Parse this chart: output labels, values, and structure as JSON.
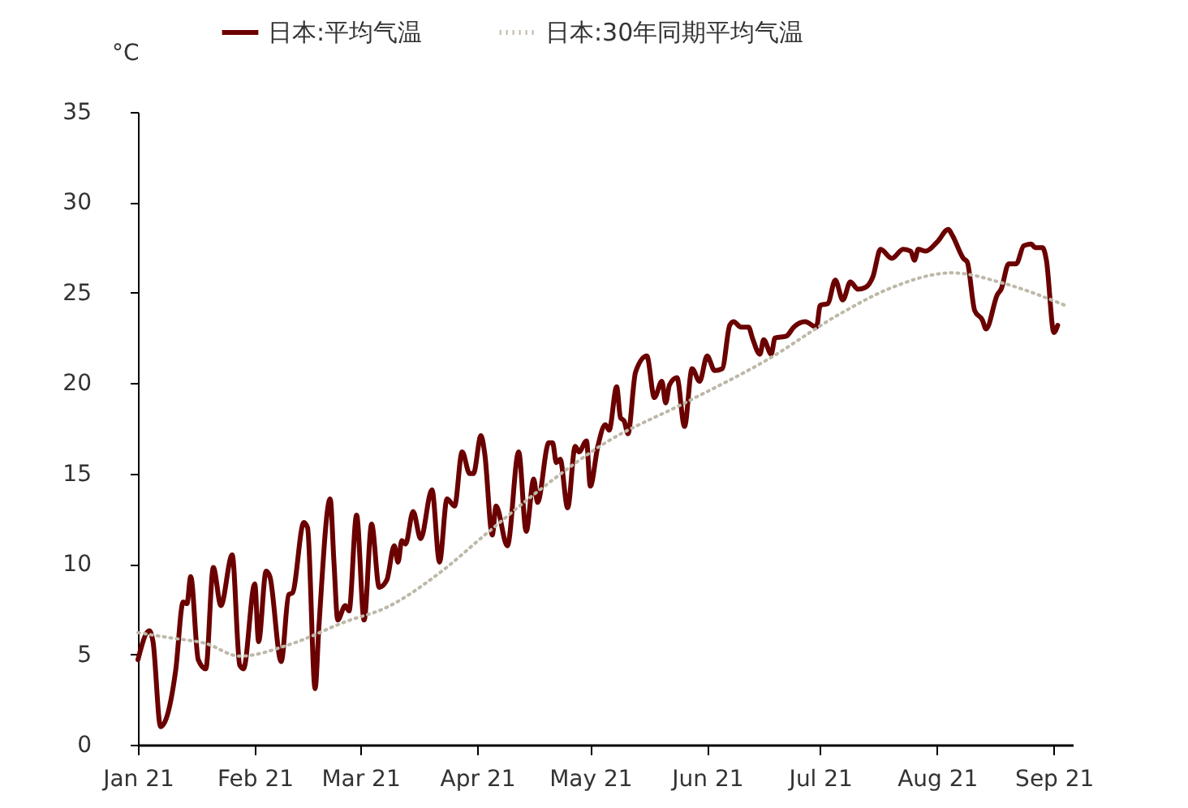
{
  "chart_data": {
    "type": "line",
    "ylabel": "°C",
    "legend": "top",
    "grid": false,
    "marker": "none",
    "xlim": [
      "2021-01-01",
      "2021-09-06"
    ],
    "xticks": [
      {
        "value": "2021-01-01",
        "label": "Jan 21"
      },
      {
        "value": "2021-02-01",
        "label": "Feb 21"
      },
      {
        "value": "2021-03-01",
        "label": "Mar 21"
      },
      {
        "value": "2021-04-01",
        "label": "Apr 21"
      },
      {
        "value": "2021-05-01",
        "label": "May 21"
      },
      {
        "value": "2021-06-01",
        "label": "Jun 21"
      },
      {
        "value": "2021-07-01",
        "label": "Jul 21"
      },
      {
        "value": "2021-08-01",
        "label": "Aug 21"
      },
      {
        "value": "2021-09-01",
        "label": "Sep 21"
      }
    ],
    "ylim": [
      0,
      35
    ],
    "yticks": [
      0,
      5,
      10,
      15,
      20,
      25,
      30,
      35
    ],
    "series": [
      {
        "name": "日本:平均气温",
        "color": "#6b0000",
        "line_style": "solid",
        "x": [
          "2021-01-01",
          "2021-01-04",
          "2021-01-05",
          "2021-01-07",
          "2021-01-11",
          "2021-01-13",
          "2021-01-14",
          "2021-01-15",
          "2021-01-17",
          "2021-01-19",
          "2021-01-21",
          "2021-01-23",
          "2021-01-26",
          "2021-01-28",
          "2021-01-29",
          "2021-02-01",
          "2021-02-02",
          "2021-02-04",
          "2021-02-05",
          "2021-02-08",
          "2021-02-10",
          "2021-02-11",
          "2021-02-14",
          "2021-02-15",
          "2021-02-17",
          "2021-02-18",
          "2021-02-21",
          "2021-02-22",
          "2021-02-23",
          "2021-02-25",
          "2021-02-26",
          "2021-02-28",
          "2021-03-02",
          "2021-03-04",
          "2021-03-06",
          "2021-03-08",
          "2021-03-10",
          "2021-03-11",
          "2021-03-12",
          "2021-03-13",
          "2021-03-15",
          "2021-03-17",
          "2021-03-20",
          "2021-03-22",
          "2021-03-24",
          "2021-03-26",
          "2021-03-28",
          "2021-03-30",
          "2021-03-31",
          "2021-04-02",
          "2021-04-03",
          "2021-04-05",
          "2021-04-06",
          "2021-04-09",
          "2021-04-12",
          "2021-04-14",
          "2021-04-16",
          "2021-04-17",
          "2021-04-20",
          "2021-04-21",
          "2021-04-22",
          "2021-04-23",
          "2021-04-25",
          "2021-04-27",
          "2021-04-28",
          "2021-04-30",
          "2021-05-01",
          "2021-05-03",
          "2021-05-05",
          "2021-05-06",
          "2021-05-08",
          "2021-05-09",
          "2021-05-10",
          "2021-05-11",
          "2021-05-13",
          "2021-05-16",
          "2021-05-18",
          "2021-05-20",
          "2021-05-21",
          "2021-05-22",
          "2021-05-24",
          "2021-05-26",
          "2021-05-28",
          "2021-05-30",
          "2021-06-01",
          "2021-06-03",
          "2021-06-05",
          "2021-06-07",
          "2021-06-08",
          "2021-06-10",
          "2021-06-12",
          "2021-06-13",
          "2021-06-15",
          "2021-06-16",
          "2021-06-18",
          "2021-06-19",
          "2021-06-22",
          "2021-06-24",
          "2021-06-27",
          "2021-06-30",
          "2021-07-01",
          "2021-07-03",
          "2021-07-05",
          "2021-07-07",
          "2021-07-09",
          "2021-07-11",
          "2021-07-13",
          "2021-07-15",
          "2021-07-17",
          "2021-07-20",
          "2021-07-23",
          "2021-07-25",
          "2021-07-26",
          "2021-07-27",
          "2021-07-29",
          "2021-08-01",
          "2021-08-04",
          "2021-08-05",
          "2021-08-08",
          "2021-08-09",
          "2021-08-11",
          "2021-08-13",
          "2021-08-14",
          "2021-08-17",
          "2021-08-18",
          "2021-08-20",
          "2021-08-22",
          "2021-08-24",
          "2021-08-26",
          "2021-08-27",
          "2021-08-29",
          "2021-08-30",
          "2021-09-01",
          "2021-09-02"
        ],
        "values": [
          4.7,
          6.3,
          5.7,
          1.0,
          4.1,
          7.9,
          7.8,
          9.3,
          4.7,
          4.2,
          9.8,
          7.7,
          10.5,
          4.4,
          4.2,
          8.9,
          5.7,
          9.6,
          9.3,
          4.6,
          8.3,
          8.4,
          12.3,
          12.0,
          3.1,
          6.5,
          13.6,
          10.1,
          6.9,
          7.7,
          7.4,
          12.7,
          6.9,
          12.2,
          8.7,
          9.1,
          11.0,
          10.1,
          11.3,
          11.1,
          12.9,
          11.4,
          14.1,
          10.1,
          13.6,
          13.2,
          16.2,
          15.0,
          15.0,
          17.1,
          16.1,
          11.6,
          13.2,
          11.0,
          16.2,
          11.8,
          14.7,
          13.4,
          16.7,
          16.7,
          15.6,
          15.8,
          13.1,
          16.5,
          16.2,
          16.8,
          14.3,
          16.5,
          17.7,
          17.4,
          19.8,
          18.1,
          17.9,
          17.2,
          20.6,
          21.5,
          19.2,
          20.1,
          18.9,
          19.9,
          20.3,
          17.6,
          20.8,
          20.1,
          21.5,
          20.7,
          20.8,
          23.2,
          23.4,
          23.1,
          23.1,
          22.5,
          21.6,
          22.4,
          21.6,
          22.5,
          22.6,
          23.1,
          23.4,
          23.1,
          24.3,
          24.4,
          25.7,
          24.6,
          25.6,
          25.2,
          25.3,
          25.9,
          27.4,
          26.9,
          27.4,
          27.3,
          26.8,
          27.4,
          27.3,
          27.8,
          28.5,
          28.2,
          26.9,
          26.7,
          24.0,
          23.5,
          23.0,
          24.9,
          25.2,
          26.6,
          26.6,
          27.6,
          27.7,
          27.5,
          27.5,
          26.8,
          22.8,
          23.2
        ]
      },
      {
        "name": "日本:30年同期平均气温",
        "color": "#bdb8a8",
        "line_style": "dotted",
        "x": [
          "2021-01-01",
          "2021-01-10",
          "2021-01-19",
          "2021-01-28",
          "2021-02-11",
          "2021-02-25",
          "2021-03-08",
          "2021-03-22",
          "2021-04-03",
          "2021-04-17",
          "2021-05-05",
          "2021-05-26",
          "2021-06-17",
          "2021-07-06",
          "2021-07-19",
          "2021-08-05",
          "2021-08-19",
          "2021-09-04"
        ],
        "values": [
          6.2,
          5.9,
          5.6,
          4.9,
          5.6,
          6.8,
          7.6,
          9.5,
          11.6,
          14.0,
          16.7,
          18.9,
          21.3,
          23.8,
          25.2,
          26.1,
          25.5,
          24.3
        ]
      }
    ]
  }
}
